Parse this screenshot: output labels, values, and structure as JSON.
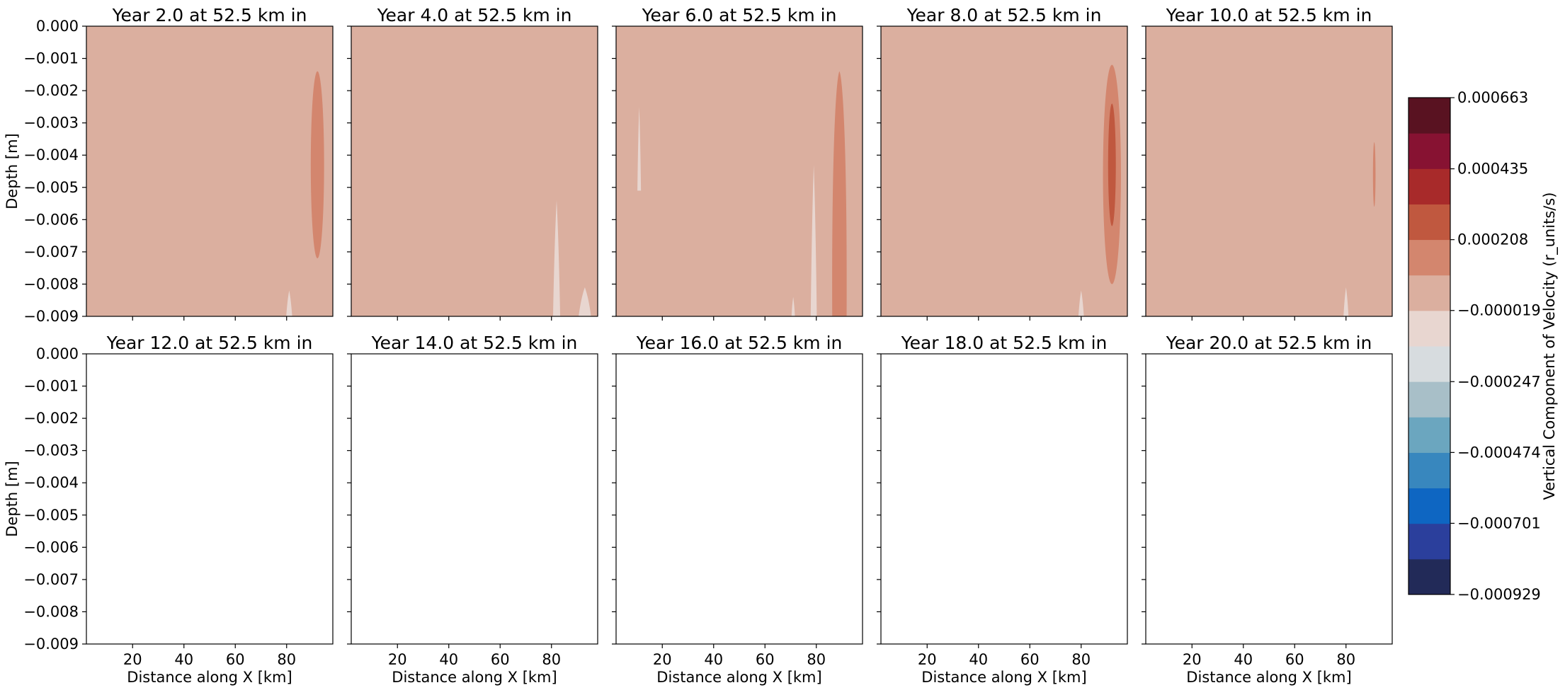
{
  "chart_data": {
    "type": "contourf",
    "panels": [
      {
        "title": "Year 2.0 at 52.5 km in",
        "has_data": true,
        "features": [
          {
            "kind": "ellipse",
            "level": "+0.000094",
            "color": "#d3866e",
            "x": 92,
            "ycenter": -0.0043,
            "xhalf": 2.6,
            "yhalf": 0.0029
          },
          {
            "kind": "spike",
            "level": "-0.000133",
            "color": "#e8d6d0",
            "x": 81,
            "ytip": -0.0082,
            "xhalf": 1.2
          }
        ]
      },
      {
        "title": "Year 4.0 at 52.5 km in",
        "has_data": true,
        "features": [
          {
            "kind": "spike",
            "level": "-0.000133",
            "color": "#e8d6d0",
            "x": 82,
            "ytip": -0.0054,
            "xhalf": 1.4
          },
          {
            "kind": "spike",
            "level": "-0.000133",
            "color": "#e8d6d0",
            "x": 93,
            "ytip": -0.0081,
            "xhalf": 2.5
          }
        ]
      },
      {
        "title": "Year 6.0 at 52.5 km in",
        "has_data": true,
        "features": [
          {
            "kind": "spike",
            "level": "-0.000133",
            "color": "#e8d6d0",
            "x": 11,
            "ytip": -0.0025,
            "ybottom": -0.0051,
            "xhalf": 0.7
          },
          {
            "kind": "spike",
            "level": "-0.000133",
            "color": "#e8d6d0",
            "x": 79,
            "ytip": -0.0043,
            "xhalf": 1.2
          },
          {
            "kind": "spike",
            "level": "-0.000133",
            "color": "#e8d6d0",
            "x": 71,
            "ytip": -0.0084,
            "xhalf": 0.7
          },
          {
            "kind": "spike",
            "level": "-0.000133",
            "color": "#e8d6d0",
            "x": 90,
            "ytip": -0.0085,
            "xhalf": 1.6
          },
          {
            "kind": "plume",
            "level": "+0.000094",
            "color": "#d3866e",
            "x": 89,
            "ytip": -0.0014,
            "xhalf": 2.8
          }
        ]
      },
      {
        "title": "Year 8.0 at 52.5 km in",
        "has_data": true,
        "features": [
          {
            "kind": "ellipse",
            "level": "+0.000094",
            "color": "#d3866e",
            "x": 92,
            "ycenter": -0.0046,
            "xhalf": 3.5,
            "yhalf": 0.0034
          },
          {
            "kind": "ellipse",
            "level": "+0.000208",
            "color": "#c0583f",
            "x": 92,
            "ycenter": -0.0043,
            "xhalf": 1.5,
            "yhalf": 0.0019
          },
          {
            "kind": "spike",
            "level": "-0.000133",
            "color": "#e8d6d0",
            "x": 80,
            "ytip": -0.0082,
            "xhalf": 1.1
          }
        ]
      },
      {
        "title": "Year 10.0 at 52.5 km in",
        "has_data": true,
        "features": [
          {
            "kind": "ellipse",
            "level": "+0.000094",
            "color": "#d3866e",
            "x": 91,
            "ycenter": -0.0046,
            "xhalf": 0.5,
            "yhalf": 0.001
          },
          {
            "kind": "spike",
            "level": "-0.000133",
            "color": "#e8d6d0",
            "x": 80,
            "ytip": -0.0081,
            "xhalf": 1.0
          }
        ]
      },
      {
        "title": "Year 12.0 at 52.5 km in",
        "has_data": false,
        "features": []
      },
      {
        "title": "Year 14.0 at 52.5 km in",
        "has_data": false,
        "features": []
      },
      {
        "title": "Year 16.0 at 52.5 km in",
        "has_data": false,
        "features": []
      },
      {
        "title": "Year 18.0 at 52.5 km in",
        "has_data": false,
        "features": []
      },
      {
        "title": "Year 20.0 at 52.5 km in",
        "has_data": false,
        "features": []
      }
    ],
    "background_level": "-0.000019",
    "background_color": "#dbaf9f",
    "xlabel": "Distance along X [km]",
    "ylabel": "Depth [m]",
    "xlim": [
      2,
      98
    ],
    "ylim": [
      -0.009,
      0.0
    ],
    "xticks": [
      20,
      40,
      60,
      80
    ],
    "xtick_labels": [
      "20",
      "40",
      "60",
      "80"
    ],
    "yticks": [
      0.0,
      -0.001,
      -0.002,
      -0.003,
      -0.004,
      -0.005,
      -0.006,
      -0.007,
      -0.008,
      -0.009
    ],
    "ytick_labels": [
      "0.000",
      "−0.001",
      "−0.002",
      "−0.003",
      "−0.004",
      "−0.005",
      "−0.006",
      "−0.007",
      "−0.008",
      "−0.009"
    ],
    "colorbar": {
      "label": "Vertical Component of Velocity (r_units/s)",
      "min": -0.000929,
      "max": 0.000663,
      "colors": [
        "#222a58",
        "#2b3f9c",
        "#0e66c2",
        "#3887be",
        "#6ba6bf",
        "#a8bfc8",
        "#d7dcdf",
        "#e8d6d0",
        "#dbaf9f",
        "#d3866e",
        "#c0583f",
        "#a82a2a",
        "#871232",
        "#591221"
      ],
      "tick_values": [
        0.000663,
        0.000435,
        0.000208,
        -1.9e-05,
        -0.000247,
        -0.000474,
        -0.000701,
        -0.000929
      ],
      "tick_labels": [
        "0.000663",
        "0.000435",
        "0.000208",
        "−0.000019",
        "−0.000247",
        "−0.000474",
        "−0.000701",
        "−0.000929"
      ]
    }
  }
}
